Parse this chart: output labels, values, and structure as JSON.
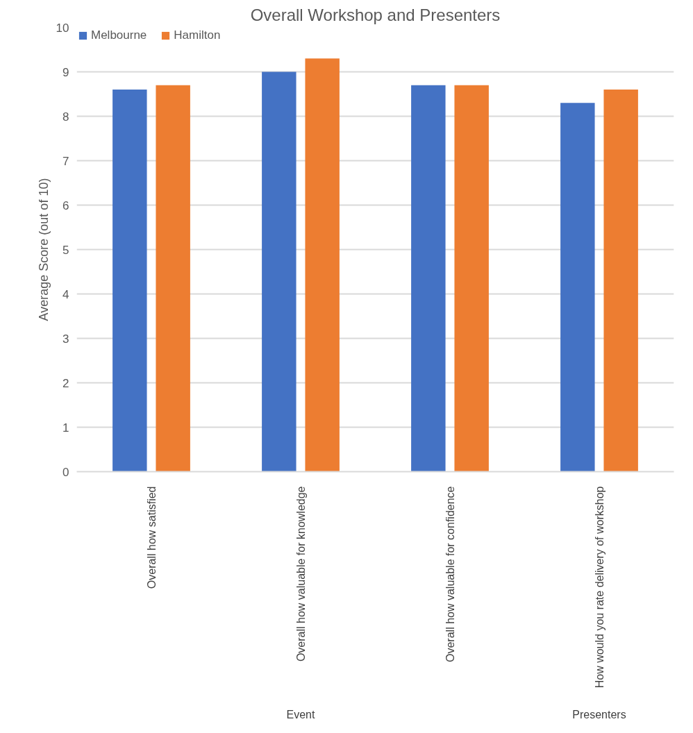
{
  "chart_data": {
    "type": "bar",
    "title": "Overall Workshop and Presenters",
    "ylabel": "Average Score (out of 10)",
    "categories": [
      "Overall how satisfied",
      "Overall how valuable for knowledge",
      "Overall how valuable for confidence",
      "How would you rate delivery of workshop"
    ],
    "series": [
      {
        "name": "Melbourne",
        "color": "#4472c4",
        "values": [
          8.6,
          9.0,
          8.7,
          8.3
        ]
      },
      {
        "name": "Hamilton",
        "color": "#ed7d31",
        "values": [
          8.7,
          9.3,
          8.7,
          8.6
        ]
      }
    ],
    "annotations": [
      "Event",
      "Presenters"
    ],
    "ylim": [
      0,
      10
    ],
    "yticks": [
      0,
      1,
      2,
      3,
      4,
      5,
      6,
      7,
      8,
      9,
      10
    ],
    "grid": "y",
    "legend": "top left"
  }
}
